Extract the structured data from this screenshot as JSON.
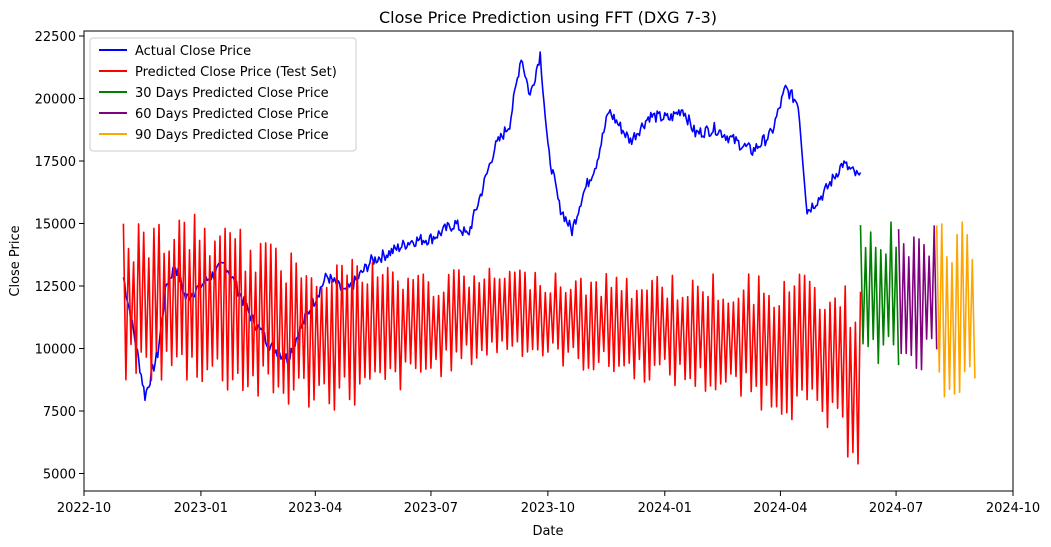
{
  "chart_data": {
    "type": "line",
    "title": "Close Price Prediction using FFT (DXG 7-3)",
    "xlabel": "Date",
    "ylabel": "Close Price",
    "xlim": [
      "2022-10-01",
      "2024-10-01"
    ],
    "ylim": [
      4300,
      22700
    ],
    "x_ticks": [
      "2022-10",
      "2023-01",
      "2023-04",
      "2023-07",
      "2023-10",
      "2024-01",
      "2024-04",
      "2024-07",
      "2024-10"
    ],
    "y_ticks": [
      5000,
      7500,
      10000,
      12500,
      15000,
      17500,
      20000,
      22500
    ],
    "grid": false,
    "legend_position": "top-left",
    "series": [
      {
        "name": "Actual Close Price",
        "color": "#0000ff",
        "anchors": [
          [
            "2022-11-01",
            12850
          ],
          [
            "2022-11-10",
            10400
          ],
          [
            "2022-11-18",
            8100
          ],
          [
            "2022-11-28",
            9800
          ],
          [
            "2022-12-05",
            12600
          ],
          [
            "2022-12-12",
            13300
          ],
          [
            "2022-12-20",
            12000
          ],
          [
            "2023-01-05",
            12700
          ],
          [
            "2023-01-20",
            13400
          ],
          [
            "2023-02-10",
            11200
          ],
          [
            "2023-02-25",
            10100
          ],
          [
            "2023-03-10",
            9600
          ],
          [
            "2023-03-25",
            11300
          ],
          [
            "2023-04-10",
            12900
          ],
          [
            "2023-04-25",
            12200
          ],
          [
            "2023-05-15",
            13500
          ],
          [
            "2023-06-01",
            13900
          ],
          [
            "2023-06-15",
            14300
          ],
          [
            "2023-07-01",
            14400
          ],
          [
            "2023-07-20",
            15000
          ],
          [
            "2023-07-30",
            14500
          ],
          [
            "2023-08-10",
            16300
          ],
          [
            "2023-08-20",
            18000
          ],
          [
            "2023-09-01",
            19000
          ],
          [
            "2023-09-10",
            21700
          ],
          [
            "2023-09-17",
            20100
          ],
          [
            "2023-09-25",
            21800
          ],
          [
            "2023-10-01",
            18000
          ],
          [
            "2023-10-10",
            15700
          ],
          [
            "2023-10-20",
            14700
          ],
          [
            "2023-10-28",
            16100
          ],
          [
            "2023-11-08",
            17400
          ],
          [
            "2023-11-18",
            19500
          ],
          [
            "2023-12-05",
            18300
          ],
          [
            "2023-12-20",
            19300
          ],
          [
            "2024-01-05",
            19200
          ],
          [
            "2024-01-15",
            19600
          ],
          [
            "2024-01-25",
            18600
          ],
          [
            "2024-02-10",
            18800
          ],
          [
            "2024-02-25",
            18300
          ],
          [
            "2024-03-10",
            17900
          ],
          [
            "2024-03-25",
            18600
          ],
          [
            "2024-04-05",
            20400
          ],
          [
            "2024-04-15",
            19800
          ],
          [
            "2024-04-22",
            15500
          ],
          [
            "2024-05-05",
            16200
          ],
          [
            "2024-05-20",
            17400
          ],
          [
            "2024-06-03",
            16800
          ]
        ]
      },
      {
        "name": "Predicted Close Price (Test Set)",
        "color": "#ff0000",
        "start": "2022-11-01",
        "end": "2024-06-03",
        "envelope": [
          [
            "2022-11-01",
            15000,
            8600
          ],
          [
            "2023-01-01",
            15400,
            8500
          ],
          [
            "2023-03-01",
            14200,
            7500
          ],
          [
            "2023-05-01",
            13800,
            7500
          ],
          [
            "2023-07-01",
            13100,
            8700
          ],
          [
            "2023-09-01",
            13300,
            9800
          ],
          [
            "2023-11-01",
            13000,
            9000
          ],
          [
            "2024-01-01",
            13000,
            8500
          ],
          [
            "2024-03-01",
            13000,
            7800
          ],
          [
            "2024-05-01",
            13000,
            6800
          ],
          [
            "2024-06-03",
            12300,
            5100
          ]
        ]
      },
      {
        "name": "30 Days Predicted Close Price",
        "color": "#008000",
        "start": "2024-06-03",
        "end": "2024-07-03",
        "envelope": [
          [
            "2024-06-03",
            15200,
            9000
          ],
          [
            "2024-07-03",
            15200,
            9000
          ]
        ]
      },
      {
        "name": "60 Days Predicted Close Price",
        "color": "#800080",
        "start": "2024-07-03",
        "end": "2024-08-02",
        "envelope": [
          [
            "2024-07-03",
            15000,
            8900
          ],
          [
            "2024-08-02",
            15000,
            9300
          ]
        ]
      },
      {
        "name": "90 Days Predicted Close Price",
        "color": "#ffa500",
        "start": "2024-08-02",
        "end": "2024-09-01",
        "envelope": [
          [
            "2024-08-02",
            15200,
            8000
          ],
          [
            "2024-09-01",
            15000,
            7800
          ]
        ]
      }
    ]
  }
}
